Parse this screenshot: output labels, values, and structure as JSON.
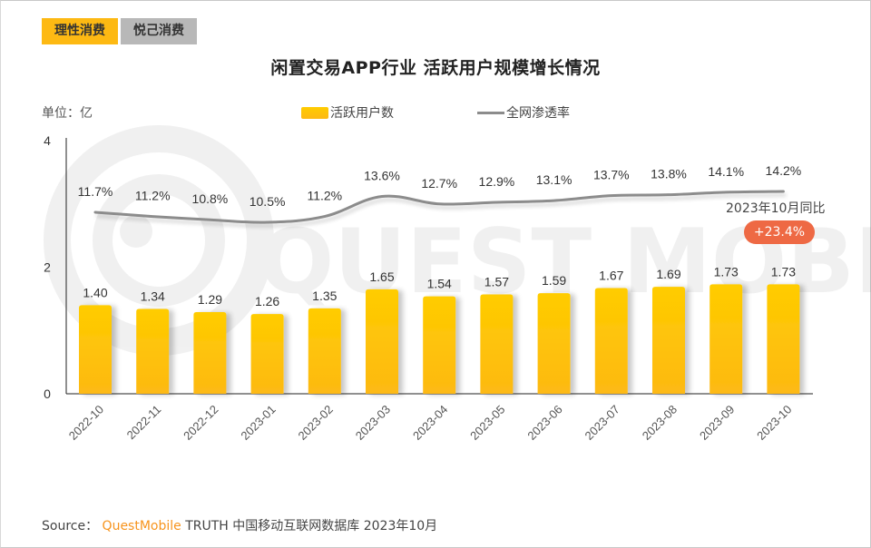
{
  "tabs": [
    {
      "label": "理性消费",
      "active": true
    },
    {
      "label": "悦己消费",
      "active": false
    }
  ],
  "header": {
    "title": "闲置交易APP行业 活跃用户规模增长情况",
    "unit": "单位：亿"
  },
  "legend": {
    "bar_label": "活跃用户数",
    "line_label": "全网渗透率"
  },
  "annotation": {
    "label": "2023年10月同比",
    "value": "+23.4%"
  },
  "source": {
    "prefix": "Source：",
    "brand": "QuestMobile",
    "rest": " TRUTH 中国移动互联网数据库 2023年10月"
  },
  "watermark": "QUEST MOBILE",
  "colors": {
    "bar_top": "#ffcc00",
    "bar_bottom": "#fdb913",
    "line": "#8c8c8c",
    "tab_active": "#fdb913",
    "tab_inactive": "#b8b8b8",
    "badge": "#ee6944",
    "brand": "#f7941d"
  },
  "chart_data": {
    "type": "bar",
    "title": "闲置交易APP行业 活跃用户规模增长情况",
    "xlabel": "",
    "ylabel": "单位：亿",
    "ylim": [
      0,
      4
    ],
    "yticks": [
      0,
      2,
      4
    ],
    "grid": false,
    "legend_position": "top-center",
    "categories": [
      "2022-10",
      "2022-11",
      "2022-12",
      "2023-01",
      "2023-02",
      "2023-03",
      "2023-04",
      "2023-05",
      "2023-06",
      "2023-07",
      "2023-08",
      "2023-09",
      "2023-10"
    ],
    "series": [
      {
        "name": "活跃用户数",
        "type": "bar",
        "axis": "left",
        "values": [
          1.4,
          1.34,
          1.29,
          1.26,
          1.35,
          1.65,
          1.54,
          1.57,
          1.59,
          1.67,
          1.69,
          1.73,
          1.73
        ],
        "labels": [
          "1.40",
          "1.34",
          "1.29",
          "1.26",
          "1.35",
          "1.65",
          "1.54",
          "1.57",
          "1.59",
          "1.67",
          "1.69",
          "1.73",
          "1.73"
        ]
      },
      {
        "name": "全网渗透率",
        "type": "line",
        "axis": "right-hidden",
        "values": [
          11.7,
          11.2,
          10.8,
          10.5,
          11.2,
          13.6,
          12.7,
          12.9,
          13.1,
          13.7,
          13.8,
          14.1,
          14.2
        ],
        "labels": [
          "11.7%",
          "11.2%",
          "10.8%",
          "10.5%",
          "11.2%",
          "13.6%",
          "12.7%",
          "12.9%",
          "13.1%",
          "13.7%",
          "13.8%",
          "14.1%",
          "14.2%"
        ]
      }
    ]
  }
}
